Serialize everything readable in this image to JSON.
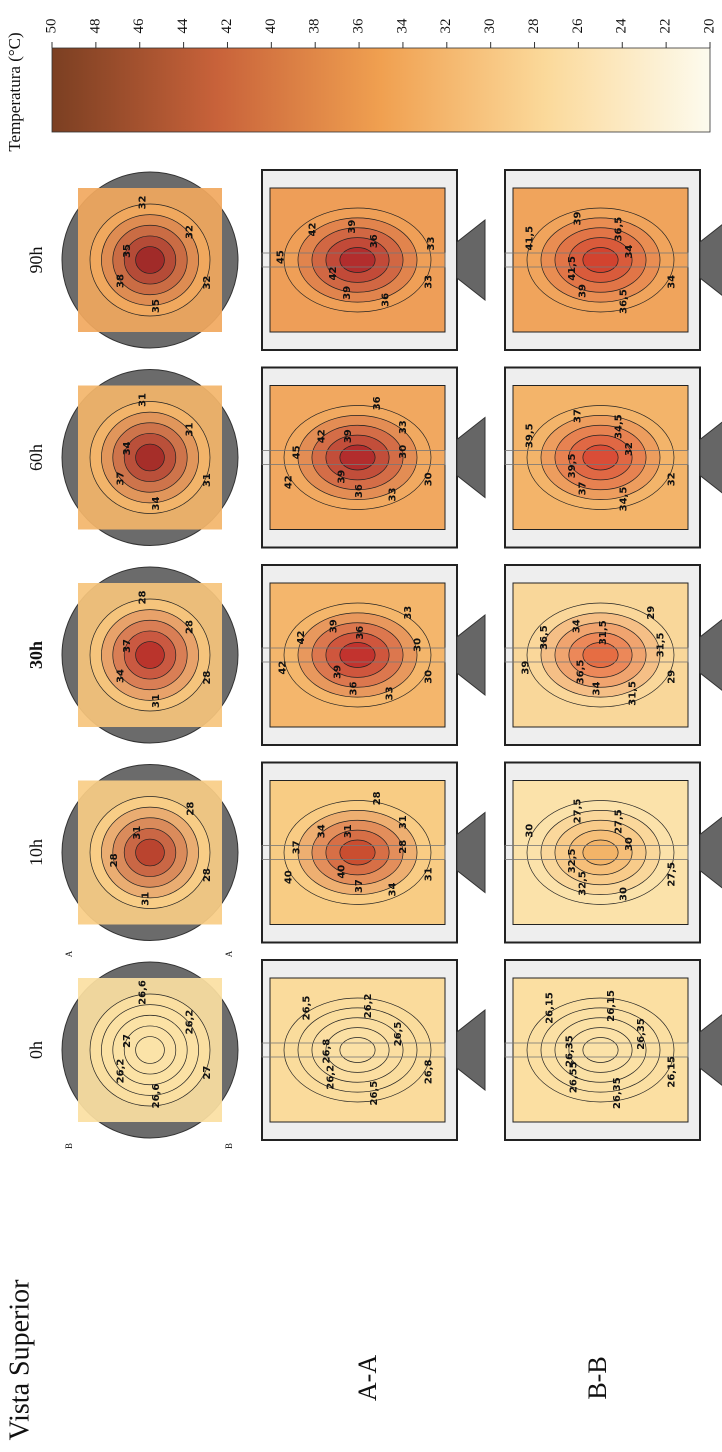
{
  "colorbar": {
    "title": "Temperatura (°C)",
    "lim": [
      50,
      20
    ],
    "ticks": [
      50,
      48,
      46,
      44,
      42,
      40,
      38,
      36,
      34,
      32,
      30,
      28,
      26,
      24,
      22,
      20
    ],
    "colors": [
      "#7b3f22",
      "#c8623a",
      "#f0a050",
      "#fbd99a",
      "#fdfbee"
    ]
  },
  "rows": [
    "Vista Superior",
    "A-A",
    "B-B"
  ],
  "section_markers": [
    "A",
    "A",
    "B",
    "B"
  ],
  "columns": [
    {
      "label": "0h",
      "bold": false,
      "top_view": {
        "core_color": "#fbe3a8",
        "edge_color": "#fbe0a2",
        "labels": [
          "27",
          "26,6",
          "26,2",
          "27",
          "26,6",
          "26,2"
        ]
      },
      "section_aa": {
        "core_color": "#fbe1a6",
        "edge_color": "#fadb9c",
        "labels": [
          "26,8",
          "26,5",
          "26,2",
          "26,8",
          "26,5",
          "26,2",
          "26,5"
        ]
      },
      "section_bb": {
        "core_color": "#fbe2a8",
        "edge_color": "#fbdfa2",
        "labels": [
          "26,15",
          "26,35",
          "26,55",
          "26,35",
          "26,15",
          "26,15",
          "26,35"
        ]
      }
    },
    {
      "label": "10h",
      "bold": false,
      "top_view": {
        "core_color": "#b8402c",
        "edge_color": "#f8cd86",
        "labels": [
          "28",
          "31",
          "28",
          "31",
          "28"
        ]
      },
      "section_aa": {
        "core_color": "#c94a2e",
        "edge_color": "#f8cc84",
        "labels": [
          "31",
          "34",
          "37",
          "40",
          "40",
          "37",
          "34",
          "31",
          "28",
          "31",
          "28"
        ]
      },
      "section_bb": {
        "core_color": "#f3b266",
        "edge_color": "#fbe2aa",
        "labels": [
          "27,5",
          "30",
          "32,5",
          "32,5",
          "30",
          "27,5",
          "27,5",
          "30"
        ]
      }
    },
    {
      "label": "30h",
      "bold": true,
      "top_view": {
        "core_color": "#b8302a",
        "edge_color": "#f6c47c",
        "labels": [
          "28",
          "31",
          "34",
          "37",
          "28",
          "28"
        ]
      },
      "section_aa": {
        "core_color": "#c0302c",
        "edge_color": "#f4b66c",
        "labels": [
          "30",
          "33",
          "36",
          "39",
          "42",
          "42",
          "39",
          "36",
          "33",
          "30"
        ]
      },
      "section_bb": {
        "core_color": "#e66a40",
        "edge_color": "#f9d79a",
        "labels": [
          "29",
          "31,5",
          "34",
          "36,5",
          "39",
          "36,5",
          "34",
          "31,5",
          "29",
          "31,5"
        ]
      }
    },
    {
      "label": "60h",
      "bold": false,
      "top_view": {
        "core_color": "#a42a28",
        "edge_color": "#f3b56a",
        "labels": [
          "31",
          "34",
          "37",
          "34",
          "31",
          "31"
        ]
      },
      "section_aa": {
        "core_color": "#b02a2c",
        "edge_color": "#f1a860",
        "labels": [
          "30",
          "33",
          "36",
          "39",
          "42",
          "45",
          "42",
          "39",
          "36",
          "33",
          "30"
        ]
      },
      "section_bb": {
        "core_color": "#d84a36",
        "edge_color": "#f3b46a",
        "labels": [
          "32",
          "34,5",
          "37",
          "39,5",
          "39,5",
          "37",
          "34,5",
          "32"
        ]
      }
    },
    {
      "label": "90h",
      "bold": false,
      "top_view": {
        "core_color": "#9e2828",
        "edge_color": "#f1a85e",
        "labels": [
          "32",
          "35",
          "38",
          "35",
          "32",
          "32"
        ]
      },
      "section_aa": {
        "core_color": "#b02a2c",
        "edge_color": "#ee9e58",
        "labels": [
          "33",
          "36",
          "39",
          "42",
          "45",
          "42",
          "39",
          "36",
          "33"
        ]
      },
      "section_bb": {
        "core_color": "#d0402f",
        "edge_color": "#f0a45c",
        "labels": [
          "34",
          "36,5",
          "39",
          "41,5",
          "41,5",
          "39",
          "36,5",
          "34"
        ]
      }
    }
  ]
}
